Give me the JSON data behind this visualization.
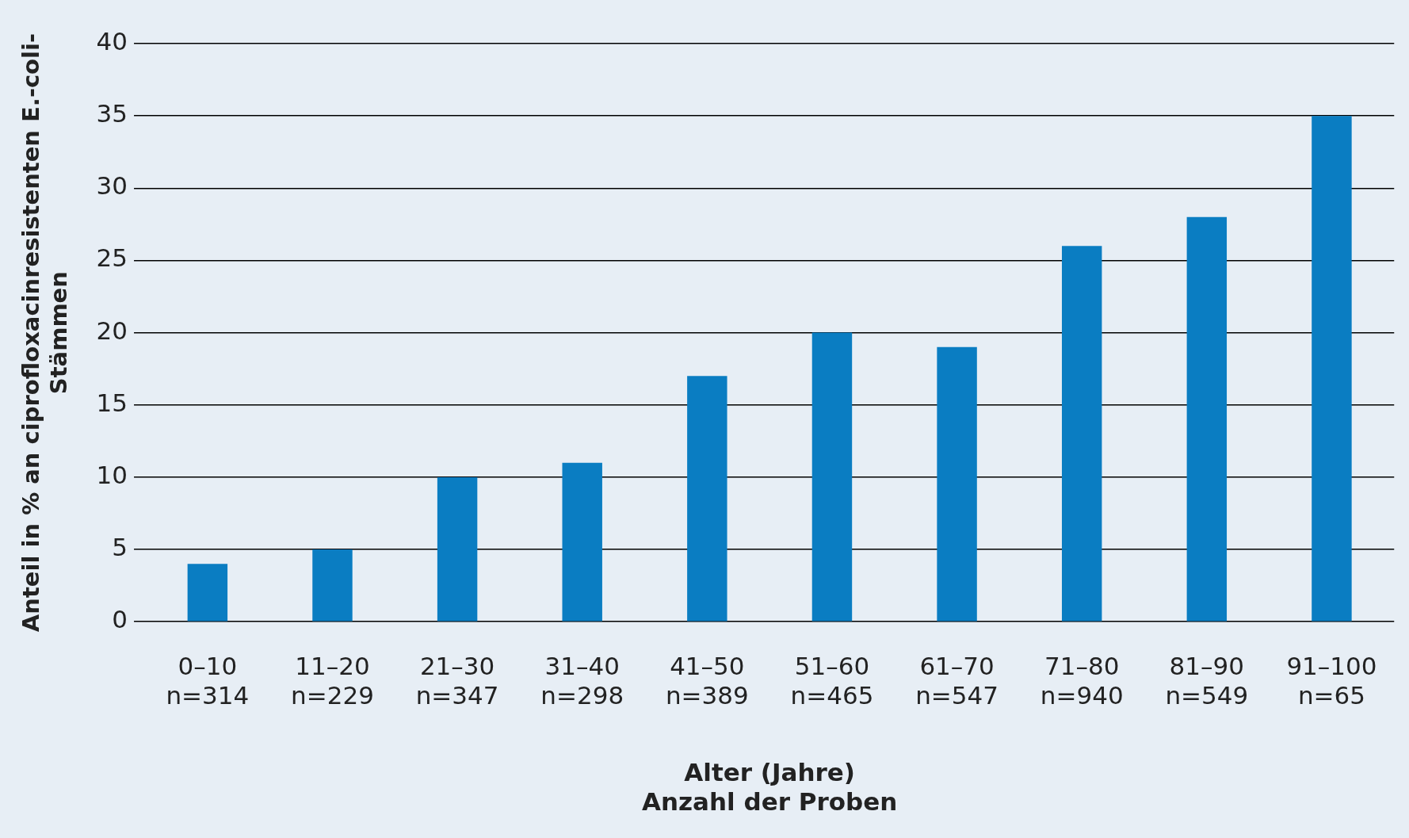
{
  "chart_data": {
    "type": "bar",
    "xlabel": "Alter (Jahre)\nAnzahl der Proben",
    "ylabel": "Anteil in % an ciprofloxacinresistenten E.-coli-\nStämmen",
    "categories": [
      "0–10\nn=314",
      "11–20\nn=229",
      "21–30\nn=347",
      "31–40\nn=298",
      "41–50\nn=389",
      "51–60\nn=465",
      "61–70\nn=547",
      "71–80\nn=940",
      "81–90\nn=549",
      "91–100\nn=65"
    ],
    "values": [
      4,
      5,
      10,
      11,
      17,
      20,
      19,
      26,
      28,
      35
    ],
    "color": "#0a7dc2",
    "ylim": [
      0,
      40
    ],
    "yticks": [
      0,
      5,
      10,
      15,
      20,
      25,
      30,
      35,
      40
    ],
    "grid": "y"
  }
}
